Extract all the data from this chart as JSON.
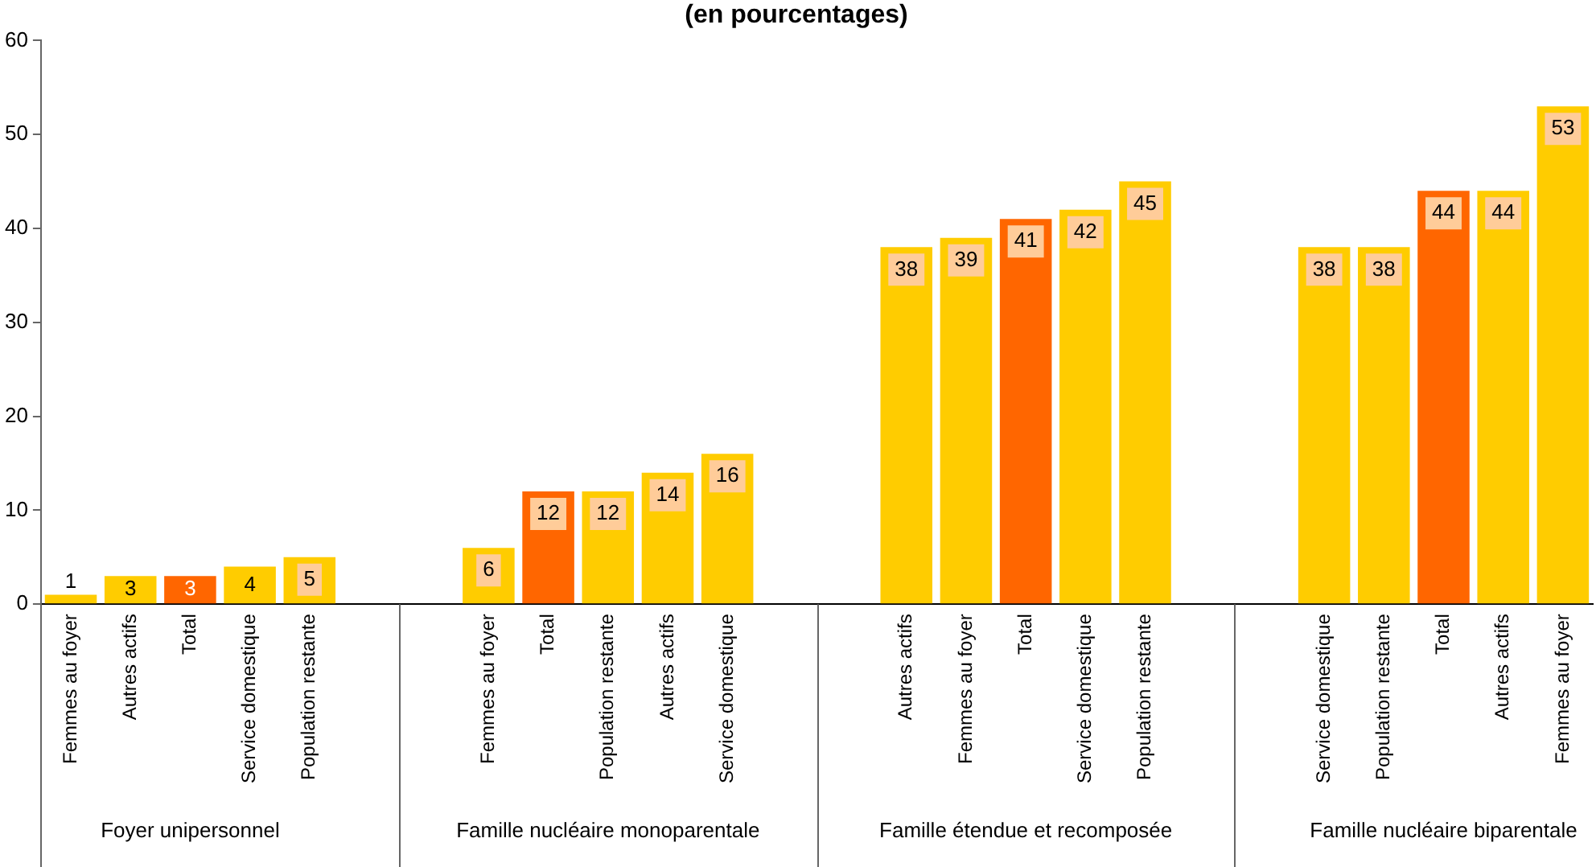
{
  "chart_data": {
    "type": "bar",
    "title": "(en pourcentages)",
    "categories": [
      "Femmes au foyer",
      "Autres actifs",
      "Total",
      "Service domestique",
      "Population restante",
      null,
      null,
      "Femmes au foyer",
      "Total",
      "Population restante",
      "Autres actifs",
      "Service domestique",
      null,
      null,
      "Autres actifs",
      "Femmes au foyer",
      "Total",
      "Service domestique",
      "Population restante",
      null,
      null,
      "Service domestique",
      "Population restante",
      "Total",
      "Autres actifs",
      "Femmes au foyer"
    ],
    "values": [
      1,
      3,
      3,
      4,
      5,
      null,
      null,
      6,
      12,
      12,
      14,
      16,
      null,
      null,
      38,
      39,
      41,
      42,
      45,
      null,
      null,
      38,
      38,
      44,
      44,
      53
    ],
    "colors": [
      "#ffcc00",
      "#ffcc00",
      "#ff6600",
      "#ffcc00",
      "#ffcc00",
      null,
      null,
      "#ffcc00",
      "#ff6600",
      "#ffcc00",
      "#ffcc00",
      "#ffcc00",
      null,
      null,
      "#ffcc00",
      "#ffcc00",
      "#ff6600",
      "#ffcc00",
      "#ffcc00",
      null,
      null,
      "#ffcc00",
      "#ffcc00",
      "#ff6600",
      "#ffcc00",
      "#ffcc00"
    ],
    "annotations": [
      "Foyer unipersonnel",
      "Famille nucléaire monoparentale",
      "Famille étendue et recomposée",
      "Famille nucléaire biparentale"
    ],
    "data_labels": true,
    "ylim": [
      0,
      60
    ],
    "yticks": [
      0,
      10,
      20,
      30,
      40,
      50,
      60
    ],
    "grid": false,
    "legend": false
  }
}
